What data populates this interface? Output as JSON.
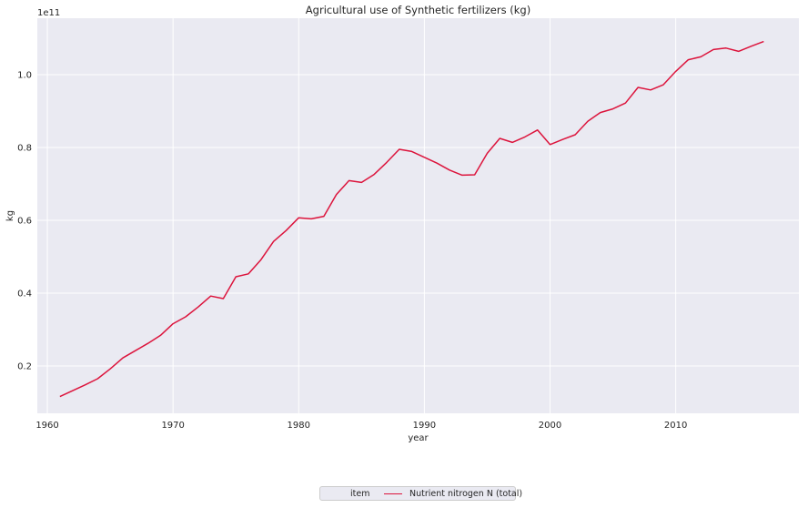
{
  "chart_data": {
    "type": "line",
    "title": "Agricultural use of Synthetic fertilizers (kg)",
    "xlabel": "year",
    "ylabel": "kg",
    "y_offset_text": "1e11",
    "xlim": [
      1959.2,
      2019.8
    ],
    "ylim": [
      7000000000.0,
      115500000000.0
    ],
    "x_ticks": [
      1960,
      1970,
      1980,
      1990,
      2000,
      2010
    ],
    "x_tick_labels": [
      "1960",
      "1970",
      "1980",
      "1990",
      "2000",
      "2010"
    ],
    "y_ticks": [
      20000000000.0,
      40000000000.0,
      60000000000.0,
      80000000000.0,
      100000000000.0
    ],
    "y_tick_labels": [
      "0.2",
      "0.4",
      "0.6",
      "0.8",
      "1.0"
    ],
    "grid": true,
    "legend_placement": "bottom-center",
    "legend_title": "item",
    "series": [
      {
        "name": "Nutrient nitrogen N (total)",
        "color": "#dc143c",
        "x": [
          1961,
          1962,
          1963,
          1964,
          1965,
          1966,
          1967,
          1968,
          1969,
          1970,
          1971,
          1972,
          1973,
          1974,
          1975,
          1976,
          1977,
          1978,
          1979,
          1980,
          1981,
          1982,
          1983,
          1984,
          1985,
          1986,
          1987,
          1988,
          1989,
          1990,
          1991,
          1992,
          1993,
          1994,
          1995,
          1996,
          1997,
          1998,
          1999,
          2000,
          2001,
          2002,
          2003,
          2004,
          2005,
          2006,
          2007,
          2008,
          2009,
          2010,
          2011,
          2012,
          2013,
          2014,
          2015,
          2016,
          2017
        ],
        "values": [
          11600000000.0,
          13200000000.0,
          14800000000.0,
          16500000000.0,
          19200000000.0,
          22200000000.0,
          24200000000.0,
          26200000000.0,
          28400000000.0,
          31600000000.0,
          33500000000.0,
          36200000000.0,
          39200000000.0,
          38500000000.0,
          44500000000.0,
          45300000000.0,
          49200000000.0,
          54200000000.0,
          57200000000.0,
          60700000000.0,
          60400000000.0,
          61100000000.0,
          67100000000.0,
          70900000000.0,
          70400000000.0,
          72600000000.0,
          75900000000.0,
          79500000000.0,
          78900000000.0,
          77300000000.0,
          75700000000.0,
          73800000000.0,
          72400000000.0,
          72500000000.0,
          78400000000.0,
          82500000000.0,
          81400000000.0,
          82900000000.0,
          84800000000.0,
          80800000000.0,
          82200000000.0,
          83500000000.0,
          87200000000.0,
          89600000000.0,
          90600000000.0,
          92200000000.0,
          96500000000.0,
          95800000000.0,
          97200000000.0,
          100900000000.0,
          104100000000.0,
          104900000000.0,
          106900000000.0,
          107300000000.0,
          106400000000.0,
          107800000000.0,
          109100000000.0
        ]
      }
    ]
  }
}
